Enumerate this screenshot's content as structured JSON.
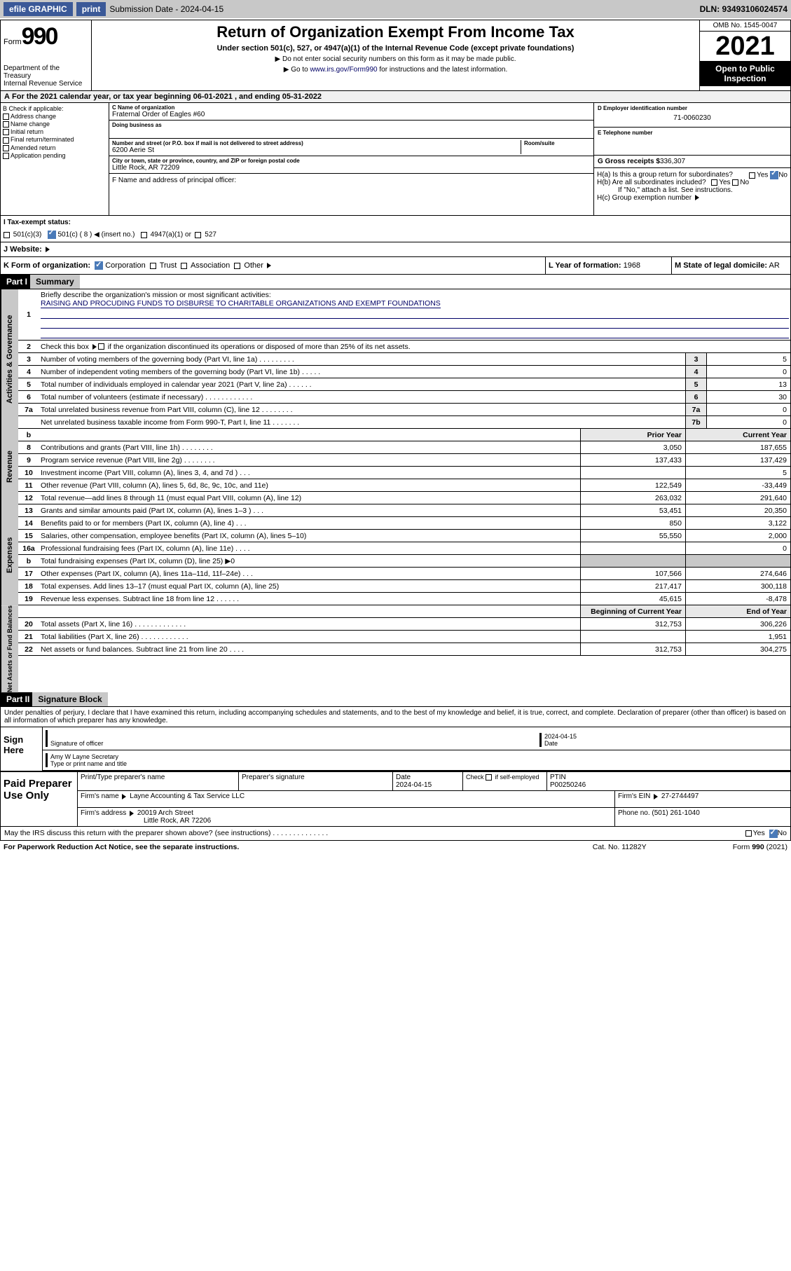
{
  "topbar": {
    "efile": "efile GRAPHIC",
    "print": "print",
    "sub_label": "Submission Date - 2024-04-15",
    "dln": "DLN: 93493106024574"
  },
  "header": {
    "form_word": "Form",
    "form_num": "990",
    "dept": "Department of the Treasury",
    "irs": "Internal Revenue Service",
    "title": "Return of Organization Exempt From Income Tax",
    "sub": "Under section 501(c), 527, or 4947(a)(1) of the Internal Revenue Code (except private foundations)",
    "instr1": "Do not enter social security numbers on this form as it may be made public.",
    "instr2_pre": "Go to ",
    "instr2_link": "www.irs.gov/Form990",
    "instr2_post": " for instructions and the latest information.",
    "omb": "OMB No. 1545-0047",
    "year": "2021",
    "open": "Open to Public Inspection"
  },
  "row_a": "For the 2021 calendar year, or tax year beginning 06-01-2021   , and ending 05-31-2022",
  "col_b": {
    "title": "B Check if applicable:",
    "items": [
      "Address change",
      "Name change",
      "Initial return",
      "Final return/terminated",
      "Amended return",
      "Application pending"
    ]
  },
  "col_c": {
    "name_label": "C Name of organization",
    "name": "Fraternal Order of Eagles #60",
    "dba_label": "Doing business as",
    "addr_label": "Number and street (or P.O. box if mail is not delivered to street address)",
    "room_label": "Room/suite",
    "addr": "6200 Aerie St",
    "city_label": "City or town, state or province, country, and ZIP or foreign postal code",
    "city": "Little Rock, AR   72209",
    "f_label": "F  Name and address of principal officer:"
  },
  "col_d": {
    "ein_label": "D Employer identification number",
    "ein": "71-0060230",
    "phone_label": "E Telephone number",
    "gross_label": "G Gross receipts $",
    "gross": "336,307"
  },
  "h": {
    "a": "H(a)  Is this a group return for subordinates?",
    "b": "H(b)  Are all subordinates included?",
    "b_note": "If \"No,\" attach a list. See instructions.",
    "c": "H(c)  Group exemption number"
  },
  "row_i": {
    "label": "I    Tax-exempt status:",
    "opts": [
      "501(c)(3)",
      "501(c) ( 8 )",
      "(insert no.)",
      "4947(a)(1) or",
      "527"
    ]
  },
  "row_j": "J   Website:",
  "row_k": {
    "label": "K Form of organization:",
    "opts": [
      "Corporation",
      "Trust",
      "Association",
      "Other"
    ]
  },
  "row_l": {
    "label": "L Year of formation:",
    "val": "1968"
  },
  "row_m": {
    "label": "M State of legal domicile:",
    "val": "AR"
  },
  "part1": {
    "hdr": "Part I",
    "title": "Summary",
    "side_gov": "Activities & Governance",
    "side_rev": "Revenue",
    "side_exp": "Expenses",
    "side_net": "Net Assets or Fund Balances",
    "mission_label": "Briefly describe the organization's mission or most significant activities:",
    "mission": "RAISING AND PROCUDING FUNDS TO DISBURSE TO CHARITABLE ORGANIZATIONS AND EXEMPT FOUNDATIONS",
    "line2": "Check this box      if the organization discontinued its operations or disposed of more than 25% of its net assets.",
    "lines_gov": [
      {
        "n": "3",
        "t": "Number of voting members of the governing body (Part VI, line 1a)   .    .    .    .    .    .    .    .    .",
        "b": "3",
        "v": "5"
      },
      {
        "n": "4",
        "t": "Number of independent voting members of the governing body (Part VI, line 1b)  .    .    .    .    .",
        "b": "4",
        "v": "0"
      },
      {
        "n": "5",
        "t": "Total number of individuals employed in calendar year 2021 (Part V, line 2a)   .    .    .    .    .    .",
        "b": "5",
        "v": "13"
      },
      {
        "n": "6",
        "t": "Total number of volunteers (estimate if necessary)   .    .    .    .    .    .    .    .    .    .    .    .",
        "b": "6",
        "v": "30"
      },
      {
        "n": "7a",
        "t": "Total unrelated business revenue from Part VIII, column (C), line 12  .    .    .    .    .    .    .    .",
        "b": "7a",
        "v": "0"
      },
      {
        "n": "",
        "t": "Net unrelated business taxable income from Form 990-T, Part I, line 11   .    .    .    .    .    .    .",
        "b": "7b",
        "v": "0"
      }
    ],
    "col_hdrs": {
      "b": "b",
      "prior": "Prior Year",
      "current": "Current Year"
    },
    "lines_rev": [
      {
        "n": "8",
        "t": "Contributions and grants (Part VIII, line 1h)   .    .    .    .    .    .    .    .",
        "p": "3,050",
        "c": "187,655"
      },
      {
        "n": "9",
        "t": "Program service revenue (Part VIII, line 2g)  .    .    .    .    .    .    .    .",
        "p": "137,433",
        "c": "137,429"
      },
      {
        "n": "10",
        "t": "Investment income (Part VIII, column (A), lines 3, 4, and 7d )   .    .    .",
        "p": "",
        "c": "5"
      },
      {
        "n": "11",
        "t": "Other revenue (Part VIII, column (A), lines 5, 6d, 8c, 9c, 10c, and 11e)",
        "p": "122,549",
        "c": "-33,449"
      },
      {
        "n": "12",
        "t": "Total revenue—add lines 8 through 11 (must equal Part VIII, column (A), line 12)",
        "p": "263,032",
        "c": "291,640"
      }
    ],
    "lines_exp": [
      {
        "n": "13",
        "t": "Grants and similar amounts paid (Part IX, column (A), lines 1–3 )  .    .    .",
        "p": "53,451",
        "c": "20,350"
      },
      {
        "n": "14",
        "t": "Benefits paid to or for members (Part IX, column (A), line 4)  .    .    .",
        "p": "850",
        "c": "3,122"
      },
      {
        "n": "15",
        "t": "Salaries, other compensation, employee benefits (Part IX, column (A), lines 5–10)",
        "p": "55,550",
        "c": "2,000"
      },
      {
        "n": "16a",
        "t": "Professional fundraising fees (Part IX, column (A), line 11e)   .    .    .    .",
        "p": "",
        "c": "0"
      },
      {
        "n": "b",
        "t": "Total fundraising expenses (Part IX, column (D), line 25) ▶0",
        "p": "__shaded__",
        "c": "__shaded__"
      },
      {
        "n": "17",
        "t": "Other expenses (Part IX, column (A), lines 11a–11d, 11f–24e)  .    .    .",
        "p": "107,566",
        "c": "274,646"
      },
      {
        "n": "18",
        "t": "Total expenses. Add lines 13–17 (must equal Part IX, column (A), line 25)",
        "p": "217,417",
        "c": "300,118"
      },
      {
        "n": "19",
        "t": "Revenue less expenses. Subtract line 18 from line 12   .    .    .    .    .    .",
        "p": "45,615",
        "c": "-8,478"
      }
    ],
    "net_hdrs": {
      "begin": "Beginning of Current Year",
      "end": "End of Year"
    },
    "lines_net": [
      {
        "n": "20",
        "t": "Total assets (Part X, line 16)  .    .    .    .    .    .    .    .    .    .    .    .    .",
        "p": "312,753",
        "c": "306,226"
      },
      {
        "n": "21",
        "t": "Total liabilities (Part X, line 26)   .    .    .    .    .    .    .    .    .    .    .    .",
        "p": "",
        "c": "1,951"
      },
      {
        "n": "22",
        "t": "Net assets or fund balances. Subtract line 21 from line 20   .    .    .    .",
        "p": "312,753",
        "c": "304,275"
      }
    ]
  },
  "part2": {
    "hdr": "Part II",
    "title": "Signature Block",
    "decl": "Under penalties of perjury, I declare that I have examined this return, including accompanying schedules and statements, and to the best of my knowledge and belief, it is true, correct, and complete. Declaration of preparer (other than officer) is based on all information of which preparer has any knowledge.",
    "sign_here": "Sign Here",
    "sig_officer": "Signature of officer",
    "sig_date": "Date",
    "sig_date_val": "2024-04-15",
    "sig_name": "Amy W Layne  Secretary",
    "sig_name_label": "Type or print name and title",
    "paid": "Paid Preparer Use Only",
    "prep_name_label": "Print/Type preparer's name",
    "prep_sig_label": "Preparer's signature",
    "prep_date_label": "Date",
    "prep_date": "2024-04-15",
    "prep_check": "Check         if self-employed",
    "ptin_label": "PTIN",
    "ptin": "P00250246",
    "firm_name_label": "Firm's name     ",
    "firm_name": "Layne Accounting & Tax Service LLC",
    "firm_ein_label": "Firm's EIN ",
    "firm_ein": "27-2744497",
    "firm_addr_label": "Firm's address ",
    "firm_addr1": "20019 Arch Street",
    "firm_addr2": "Little Rock, AR  72206",
    "phone_label": "Phone no.",
    "phone": "(501) 261-1040",
    "may_irs": "May the IRS discuss this return with the preparer shown above? (see instructions)   .    .    .    .    .    .    .    .    .    .    .    .    .    .",
    "yes": "Yes",
    "no": "No"
  },
  "footer": {
    "paperwork": "For Paperwork Reduction Act Notice, see the separate instructions.",
    "cat": "Cat. No. 11282Y",
    "form": "Form 990 (2021)"
  }
}
